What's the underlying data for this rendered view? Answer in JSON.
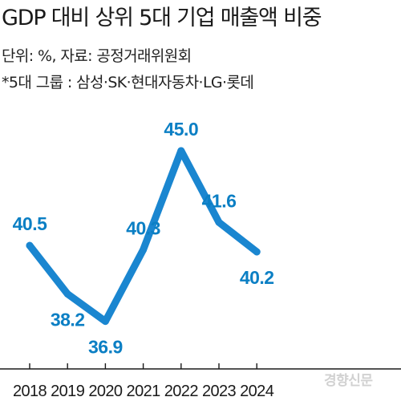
{
  "header": {
    "title": "GDP 대비 상위 5대 기업 매출액 비중",
    "unit_source": "단위: %, 자료: 공정거래위원회",
    "note": "*5대 그룹 : 삼성·SK·현대자동차·LG·롯데"
  },
  "watermark": "경향신문",
  "colors": {
    "line": "#1a86d0",
    "label": "#0b7fc4",
    "axis": "#1a1a1a"
  },
  "chart_data": {
    "type": "line",
    "categories": [
      "2018",
      "2019",
      "2020",
      "2021",
      "2022",
      "2023",
      "2024"
    ],
    "values": [
      40.5,
      38.2,
      36.9,
      40.3,
      45.0,
      41.6,
      40.2
    ],
    "value_labels": [
      "40.5",
      "38.2",
      "36.9",
      "40.3",
      "45.0",
      "41.6",
      "40.2"
    ],
    "title": "",
    "xlabel": "",
    "ylabel": "",
    "grid": false,
    "legend": "none"
  }
}
